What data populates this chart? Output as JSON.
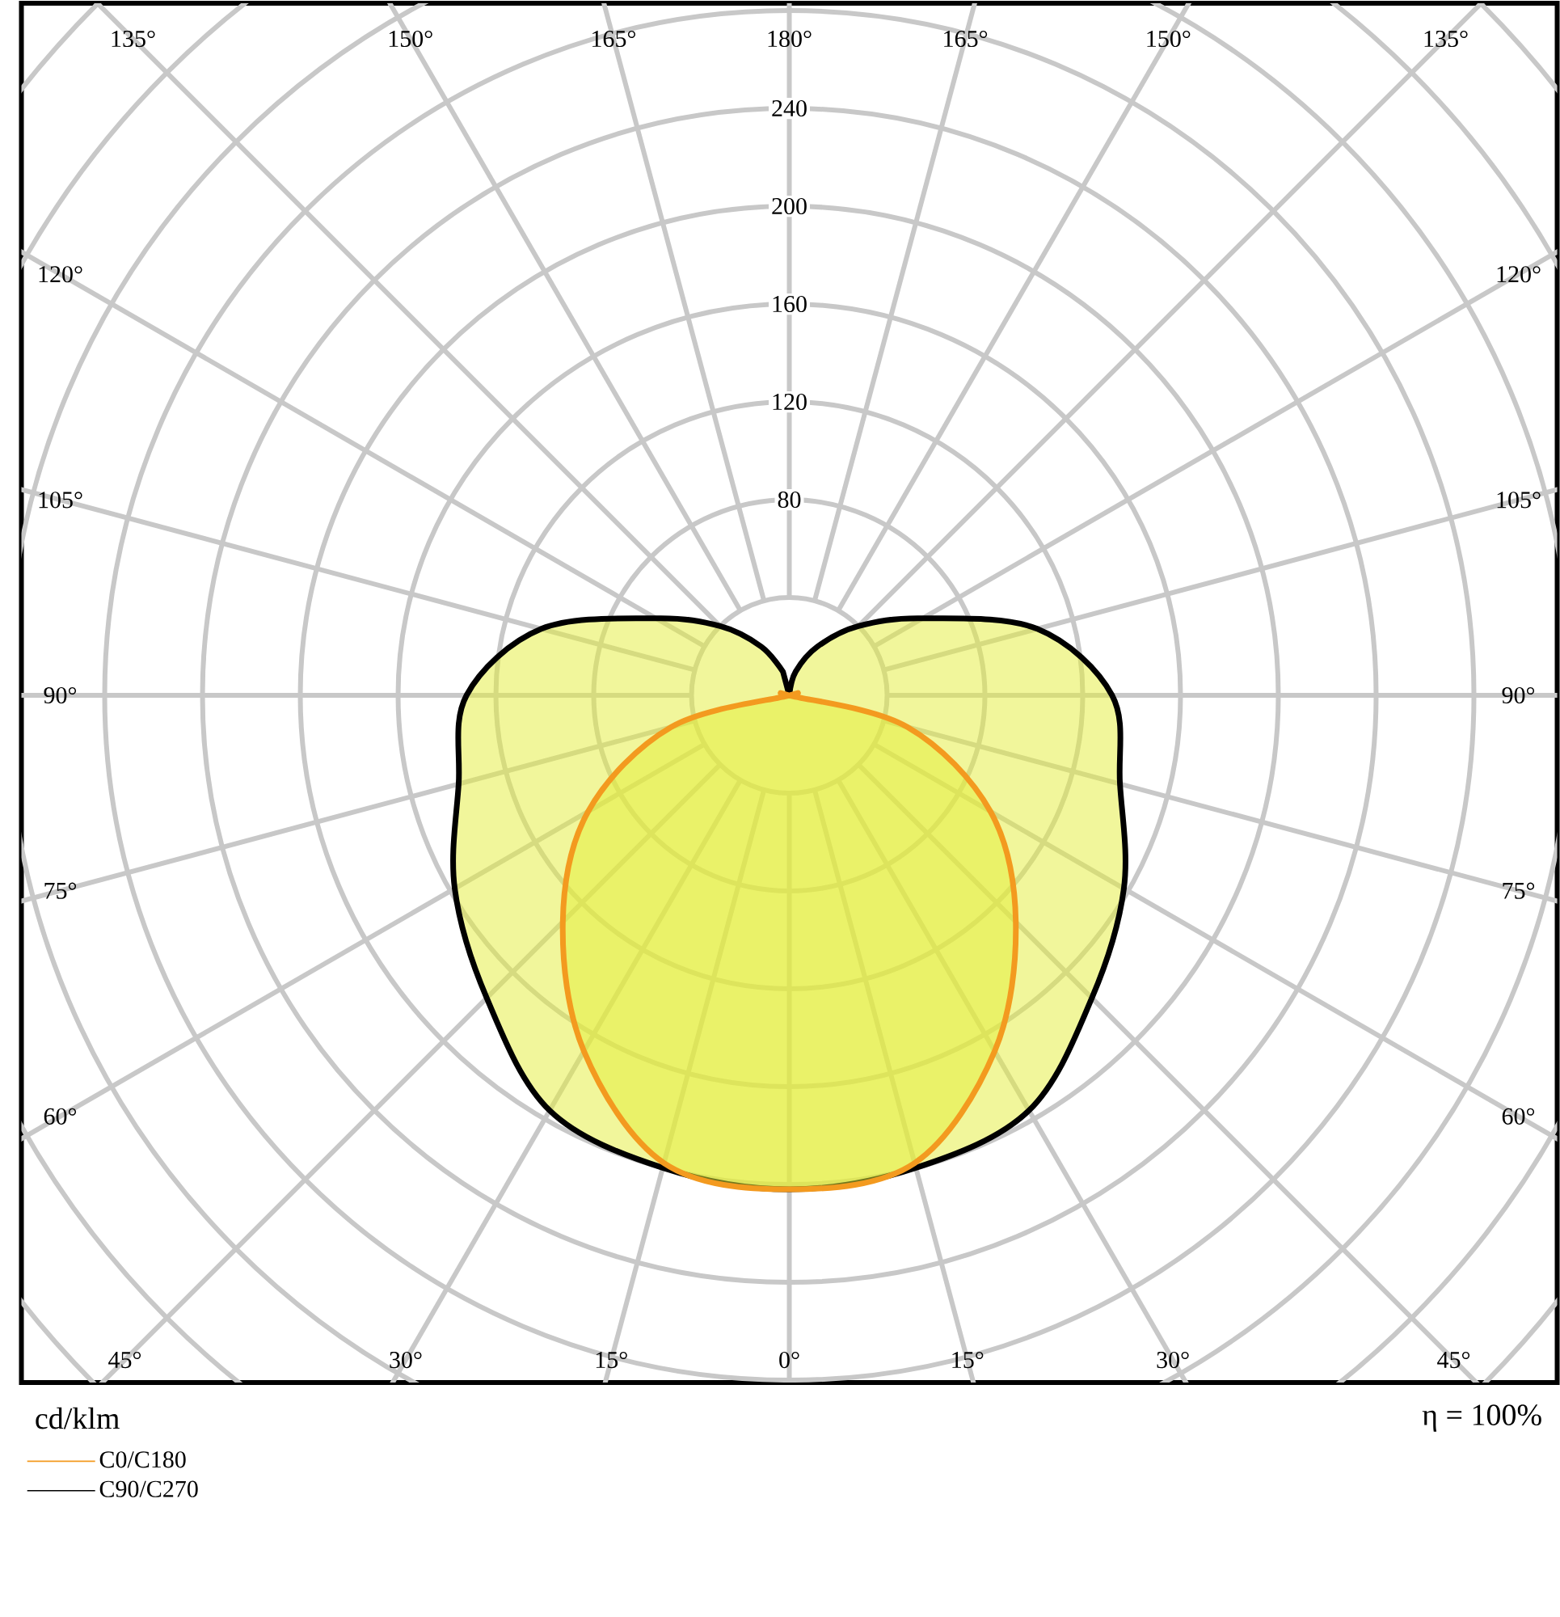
{
  "chart_data": {
    "type": "radar",
    "categories": [
      "180°",
      "165°",
      "150°",
      "135°",
      "120°",
      "105°",
      "90°",
      "75°",
      "60°",
      "45°",
      "30°",
      "15°",
      "0°",
      "15°",
      "30°",
      "45°",
      "60°",
      "75°",
      "90°",
      "105°",
      "120°",
      "135°",
      "150°",
      "165°"
    ],
    "series": [
      {
        "name": "C0/C180",
        "color": "#f39a1f",
        "values": [
          0,
          0,
          0,
          0,
          0,
          0,
          0,
          50,
          95,
          131,
          168,
          198,
          202,
          198,
          168,
          131,
          95,
          50,
          0,
          0,
          0,
          0,
          0,
          0
        ]
      },
      {
        "name": "C90/C270",
        "color": "#000000",
        "values": [
          0,
          10,
          23,
          40,
          63,
          105,
          132,
          140,
          158,
          175,
          196,
          200,
          202,
          200,
          196,
          175,
          158,
          140,
          132,
          105,
          63,
          40,
          23,
          10
        ]
      }
    ],
    "ylim": [
      0,
      400
    ],
    "yticks": [
      80,
      120,
      160,
      200,
      240
    ],
    "ylabel": "cd/klm",
    "annotations": [
      "η = 100%"
    ],
    "grid": true,
    "legend": "bottom left"
  }
}
